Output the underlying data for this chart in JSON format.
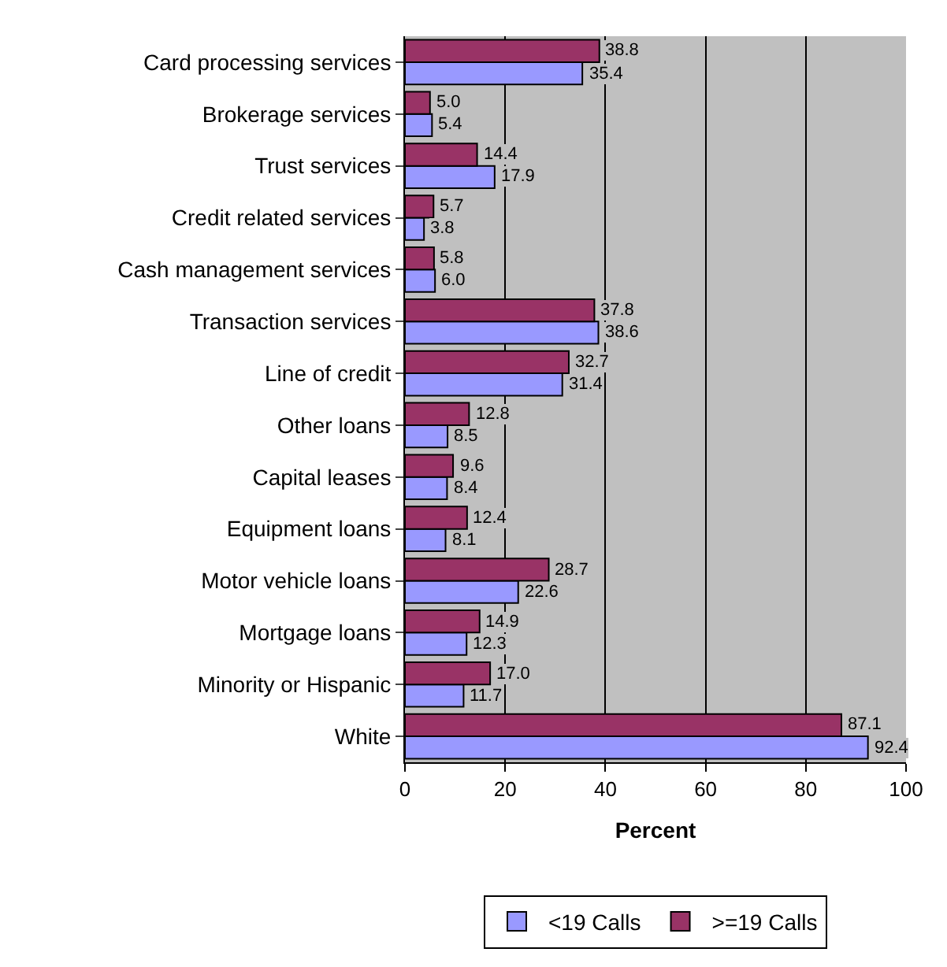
{
  "chart_data": {
    "type": "bar",
    "orientation": "horizontal",
    "xlabel": "Percent",
    "categories": [
      "Card processing services",
      "Brokerage services",
      "Trust services",
      "Credit related services",
      "Cash management services",
      "Transaction services",
      "Line of credit",
      "Other loans",
      "Capital leases",
      "Equipment loans",
      "Motor vehicle loans",
      "Mortgage loans",
      "Minority or Hispanic",
      "White"
    ],
    "series": [
      {
        "name": "<19 Calls",
        "color": "#9999ff",
        "values": [
          35.4,
          5.4,
          17.9,
          3.8,
          6.0,
          38.6,
          31.4,
          8.5,
          8.4,
          8.1,
          22.6,
          12.3,
          11.7,
          92.4
        ],
        "value_labels": [
          "35.4",
          "5.4",
          "17.9",
          "3.8",
          "6.0",
          "38.6",
          "31.4",
          "8.5",
          "8.4",
          "8.1",
          "22.6",
          "12.3",
          "11.7",
          "92.4"
        ]
      },
      {
        "name": ">=19 Calls",
        "color": "#993366",
        "values": [
          38.8,
          5.0,
          14.4,
          5.7,
          5.8,
          37.8,
          32.7,
          12.8,
          9.6,
          12.4,
          28.7,
          14.9,
          17.0,
          87.1
        ],
        "value_labels": [
          "38.8",
          "5.0",
          "14.4",
          "5.7",
          "5.8",
          "37.8",
          "32.7",
          "12.8",
          "9.6",
          "12.4",
          "28.7",
          "14.9",
          "17.0",
          "87.1"
        ]
      }
    ],
    "xlim": [
      0,
      100
    ],
    "xticks": [
      0,
      20,
      40,
      60,
      80,
      100
    ],
    "grid": "x",
    "legend": "bottom"
  }
}
